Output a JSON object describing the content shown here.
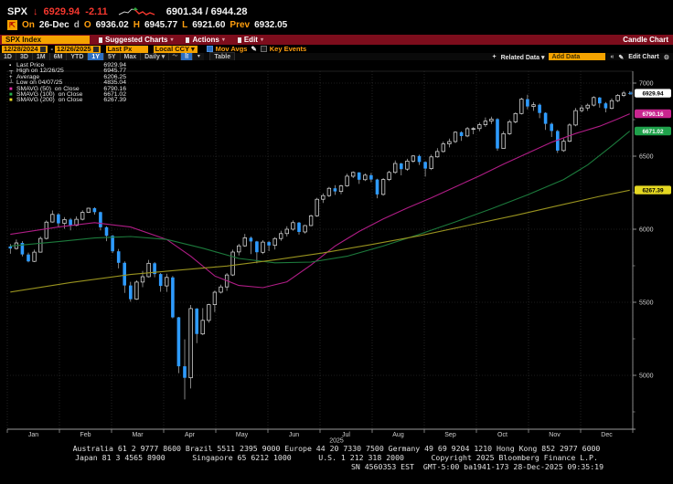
{
  "quote": {
    "ticker": "SPX",
    "arrow": "↓",
    "last": "6929.94",
    "change": "-2.11",
    "range": "6901.34 / 6944.28",
    "flag_icon": "chart-flag",
    "on_label": "On",
    "date": "26-Dec",
    "freq_flag": "d",
    "o_label": "O",
    "open": "6936.02",
    "h_label": "H",
    "high": "6945.77",
    "l_label": "L",
    "low": "6921.60",
    "prev_label": "Prev",
    "prev": "6932.05"
  },
  "menubar": {
    "security": "SPX Index",
    "items": [
      {
        "label": "Suggested Charts"
      },
      {
        "label": "Actions"
      },
      {
        "label": "Edit"
      }
    ],
    "title": "Candle Chart"
  },
  "controls": {
    "date_from": "12/28/2024",
    "dash": "-",
    "date_to": "12/26/2025",
    "px_field": "Last Px",
    "currency": "Local CCY ▾",
    "mov_avgs_label": "Mov Avgs",
    "pencil": "✎",
    "key_events_label": "Key Events"
  },
  "periods": {
    "buttons": [
      "1D",
      "3D",
      "1M",
      "6M",
      "YTD",
      "1Y",
      "5Y",
      "Max"
    ],
    "active": "1Y",
    "frequency": "Daily ▾",
    "chart_type_dropdown": "▾",
    "table_label": "Table",
    "related_plus": "+",
    "related_label": "Related Data ▾",
    "add_data_placeholder": "Add Data",
    "collapse": "«",
    "edit_pencil": "✎",
    "edit_chart_label": "Edit Chart",
    "gear": "⚙"
  },
  "legend": {
    "rows": [
      {
        "marker": "▪",
        "color": "#ffffff",
        "label": "Last Price",
        "value": "6929.94"
      },
      {
        "marker": "┬",
        "color": "#ffffff",
        "label": "High on 12/26/25",
        "value": "6945.77"
      },
      {
        "marker": "+",
        "color": "#ffffff",
        "label": "Average",
        "value": "6206.25"
      },
      {
        "marker": "┴",
        "color": "#ffffff",
        "label": "Low on 04/07/25",
        "value": "4835.04"
      },
      {
        "marker": "■",
        "color": "#e02ba8",
        "label": "SMAVG (50)  on Close",
        "value": "6790.16"
      },
      {
        "marker": "■",
        "color": "#27b24e",
        "label": "SMAVG (100)  on Close",
        "value": "6671.02"
      },
      {
        "marker": "■",
        "color": "#e8da25",
        "label": "SMAVG (200)  on Close",
        "value": "6267.39"
      }
    ]
  },
  "chart_data": {
    "type": "candlestick",
    "title": "SPX Index 1Y Daily Candle Chart",
    "colors": {
      "up_candle": "#e8e8e8",
      "down_candle": "#2e9bff",
      "wick": "#b9b9b9",
      "ma50": "#b01d86",
      "ma100": "#1c7a3c",
      "ma200": "#99931f",
      "axis": "#9a9a9a",
      "grid": "#3a3a3a"
    },
    "x_axis": {
      "months": [
        "Jan",
        "Feb",
        "Mar",
        "Apr",
        "May",
        "Jun",
        "Jul",
        "Aug",
        "Sep",
        "Oct",
        "Nov",
        "Dec"
      ],
      "year": "2025"
    },
    "y_axis": {
      "ticks": [
        7000,
        6500,
        6000,
        5500,
        5000
      ],
      "minor_step": 250,
      "range": [
        4650,
        7050
      ]
    },
    "stats": {
      "last_price": 6929.94,
      "high_date": "12/26/25",
      "high_value": 6945.77,
      "average": 6206.25,
      "low_date": "04/07/25",
      "low_value": 4835.04
    },
    "ohlc": [
      [
        5882,
        5898,
        5832,
        5868
      ],
      [
        5868,
        5930,
        5860,
        5906
      ],
      [
        5906,
        5918,
        5814,
        5827
      ],
      [
        5827,
        5840,
        5773,
        5780
      ],
      [
        5780,
        5860,
        5775,
        5843
      ],
      [
        5843,
        5950,
        5840,
        5937
      ],
      [
        5937,
        6060,
        5930,
        6049
      ],
      [
        6049,
        6128,
        6045,
        6101
      ],
      [
        6101,
        6110,
        6013,
        6040
      ],
      [
        6040,
        6083,
        6003,
        6066
      ],
      [
        6066,
        6076,
        5992,
        6026
      ],
      [
        6026,
        6088,
        6021,
        6068
      ],
      [
        6068,
        6130,
        6060,
        6115
      ],
      [
        6115,
        6147,
        6111,
        6144
      ],
      [
        6144,
        6150,
        6100,
        6117
      ],
      [
        6117,
        6120,
        5992,
        6013
      ],
      [
        6013,
        6020,
        5918,
        5955
      ],
      [
        5955,
        5960,
        5837,
        5849
      ],
      [
        5849,
        5865,
        5732,
        5770
      ],
      [
        5770,
        5780,
        5564,
        5615
      ],
      [
        5615,
        5640,
        5504,
        5521
      ],
      [
        5521,
        5650,
        5516,
        5638
      ],
      [
        5638,
        5715,
        5603,
        5675
      ],
      [
        5675,
        5790,
        5670,
        5767
      ],
      [
        5767,
        5775,
        5671,
        5693
      ],
      [
        5693,
        5700,
        5572,
        5612
      ],
      [
        5612,
        5695,
        5571,
        5670
      ],
      [
        5670,
        5680,
        5390,
        5397
      ],
      [
        5397,
        5400,
        5015,
        5062
      ],
      [
        5062,
        5246,
        4835,
        4983
      ],
      [
        4983,
        5481,
        4910,
        5457
      ],
      [
        5457,
        5460,
        5220,
        5283
      ],
      [
        5283,
        5460,
        5275,
        5376
      ],
      [
        5376,
        5490,
        5360,
        5484
      ],
      [
        5484,
        5580,
        5433,
        5569
      ],
      [
        5569,
        5620,
        5560,
        5605
      ],
      [
        5605,
        5700,
        5578,
        5687
      ],
      [
        5687,
        5860,
        5680,
        5844
      ],
      [
        5844,
        5900,
        5820,
        5886
      ],
      [
        5886,
        5968,
        5880,
        5941
      ],
      [
        5941,
        5950,
        5830,
        5916
      ],
      [
        5916,
        5920,
        5767,
        5842
      ],
      [
        5842,
        5925,
        5830,
        5912
      ],
      [
        5912,
        5920,
        5850,
        5889
      ],
      [
        5889,
        5945,
        5861,
        5936
      ],
      [
        5936,
        5990,
        5920,
        5970
      ],
      [
        5970,
        6020,
        5950,
        6000
      ],
      [
        6000,
        6060,
        5990,
        6045
      ],
      [
        6045,
        6050,
        5963,
        5981
      ],
      [
        5981,
        6030,
        5970,
        6025
      ],
      [
        6025,
        6100,
        6020,
        6092
      ],
      [
        6092,
        6215,
        6085,
        6205
      ],
      [
        6205,
        6245,
        6180,
        6230
      ],
      [
        6230,
        6290,
        6220,
        6280
      ],
      [
        6280,
        6302,
        6235,
        6259
      ],
      [
        6259,
        6305,
        6240,
        6297
      ],
      [
        6297,
        6380,
        6290,
        6363
      ],
      [
        6363,
        6395,
        6350,
        6389
      ],
      [
        6389,
        6390,
        6310,
        6339
      ],
      [
        6339,
        6382,
        6330,
        6370
      ],
      [
        6370,
        6385,
        6321,
        6340
      ],
      [
        6340,
        6345,
        6212,
        6238
      ],
      [
        6238,
        6350,
        6230,
        6340
      ],
      [
        6340,
        6400,
        6330,
        6389
      ],
      [
        6389,
        6470,
        6380,
        6450
      ],
      [
        6450,
        6455,
        6369,
        6411
      ],
      [
        6411,
        6482,
        6400,
        6466
      ],
      [
        6466,
        6508,
        6455,
        6501
      ],
      [
        6501,
        6510,
        6440,
        6460
      ],
      [
        6460,
        6465,
        6360,
        6415
      ],
      [
        6415,
        6510,
        6405,
        6495
      ],
      [
        6495,
        6555,
        6490,
        6532
      ],
      [
        6532,
        6600,
        6525,
        6584
      ],
      [
        6584,
        6620,
        6560,
        6600
      ],
      [
        6600,
        6670,
        6590,
        6664
      ],
      [
        6664,
        6670,
        6605,
        6638
      ],
      [
        6638,
        6700,
        6630,
        6688
      ],
      [
        6688,
        6699,
        6650,
        6689
      ],
      [
        6689,
        6730,
        6670,
        6715
      ],
      [
        6715,
        6765,
        6700,
        6740
      ],
      [
        6740,
        6770,
        6720,
        6754
      ],
      [
        6754,
        6760,
        6537,
        6553
      ],
      [
        6553,
        6670,
        6550,
        6654
      ],
      [
        6654,
        6750,
        6645,
        6735
      ],
      [
        6735,
        6800,
        6725,
        6792
      ],
      [
        6792,
        6900,
        6785,
        6890
      ],
      [
        6890,
        6920,
        6820,
        6840
      ],
      [
        6840,
        6870,
        6810,
        6852
      ],
      [
        6852,
        6860,
        6760,
        6796
      ],
      [
        6796,
        6800,
        6680,
        6721
      ],
      [
        6721,
        6730,
        6631,
        6672
      ],
      [
        6672,
        6680,
        6522,
        6538
      ],
      [
        6538,
        6620,
        6530,
        6602
      ],
      [
        6602,
        6725,
        6595,
        6713
      ],
      [
        6713,
        6830,
        6705,
        6812
      ],
      [
        6812,
        6850,
        6800,
        6830
      ],
      [
        6830,
        6860,
        6810,
        6849
      ],
      [
        6849,
        6910,
        6840,
        6901
      ],
      [
        6901,
        6905,
        6832,
        6861
      ],
      [
        6861,
        6870,
        6800,
        6827
      ],
      [
        6827,
        6895,
        6820,
        6880
      ],
      [
        6880,
        6925,
        6870,
        6916
      ],
      [
        6916,
        6946,
        6905,
        6932
      ],
      [
        6932,
        6944,
        6921,
        6930
      ]
    ],
    "moving_averages": [
      {
        "name": "SMAVG (50) on Close",
        "value": 6790.16,
        "color": "#b01d86",
        "points": [
          [
            0,
            5965
          ],
          [
            8,
            6015
          ],
          [
            14,
            6045
          ],
          [
            20,
            6015
          ],
          [
            26,
            5930
          ],
          [
            30,
            5815
          ],
          [
            34,
            5680
          ],
          [
            38,
            5615
          ],
          [
            42,
            5600
          ],
          [
            46,
            5640
          ],
          [
            50,
            5755
          ],
          [
            54,
            5885
          ],
          [
            58,
            5985
          ],
          [
            62,
            6070
          ],
          [
            66,
            6145
          ],
          [
            70,
            6215
          ],
          [
            74,
            6290
          ],
          [
            78,
            6365
          ],
          [
            82,
            6445
          ],
          [
            86,
            6520
          ],
          [
            90,
            6595
          ],
          [
            94,
            6655
          ],
          [
            98,
            6705
          ],
          [
            101,
            6755
          ],
          [
            103,
            6790
          ]
        ]
      },
      {
        "name": "SMAVG (100) on Close",
        "value": 6671.02,
        "color": "#1c7a3c",
        "points": [
          [
            0,
            5885
          ],
          [
            8,
            5915
          ],
          [
            14,
            5940
          ],
          [
            20,
            5950
          ],
          [
            26,
            5930
          ],
          [
            32,
            5870
          ],
          [
            38,
            5800
          ],
          [
            44,
            5770
          ],
          [
            50,
            5775
          ],
          [
            56,
            5815
          ],
          [
            62,
            5885
          ],
          [
            68,
            5965
          ],
          [
            74,
            6050
          ],
          [
            80,
            6140
          ],
          [
            86,
            6235
          ],
          [
            92,
            6340
          ],
          [
            96,
            6440
          ],
          [
            100,
            6570
          ],
          [
            103,
            6671
          ]
        ]
      },
      {
        "name": "SMAVG (200) on Close",
        "value": 6267.39,
        "color": "#99931f",
        "points": [
          [
            0,
            5570
          ],
          [
            10,
            5635
          ],
          [
            20,
            5690
          ],
          [
            28,
            5720
          ],
          [
            36,
            5748
          ],
          [
            44,
            5790
          ],
          [
            52,
            5838
          ],
          [
            60,
            5895
          ],
          [
            68,
            5955
          ],
          [
            76,
            6025
          ],
          [
            84,
            6095
          ],
          [
            92,
            6170
          ],
          [
            98,
            6225
          ],
          [
            103,
            6267
          ]
        ]
      }
    ],
    "axis_price_labels": [
      {
        "text": "6929.94",
        "price": 6929.94,
        "bg": "#ffffff",
        "fg": "#000000"
      },
      {
        "text": "6790.16",
        "price": 6790.16,
        "bg": "#c9258f",
        "fg": "#ffffff"
      },
      {
        "text": "6671.02",
        "price": 6671.02,
        "bg": "#1fa14b",
        "fg": "#ffffff"
      },
      {
        "text": "6267.39",
        "price": 6267.39,
        "bg": "#e5d822",
        "fg": "#000000"
      }
    ]
  },
  "footer": {
    "line1": "Australia 61 2 9777 8600 Brazil 5511 2395 9000 Europe 44 20 7330 7500 Germany 49 69 9204 1210 Hong Kong 852 2977 6000",
    "line2": "Japan 81 3 4565 8900      Singapore 65 6212 1000      U.S. 1 212 318 2000      Copyright 2025 Bloomberg Finance L.P.",
    "line3": "SN 4560353 EST  GMT-5:00 ba1941-173 28-Dec-2025 09:35:19"
  }
}
